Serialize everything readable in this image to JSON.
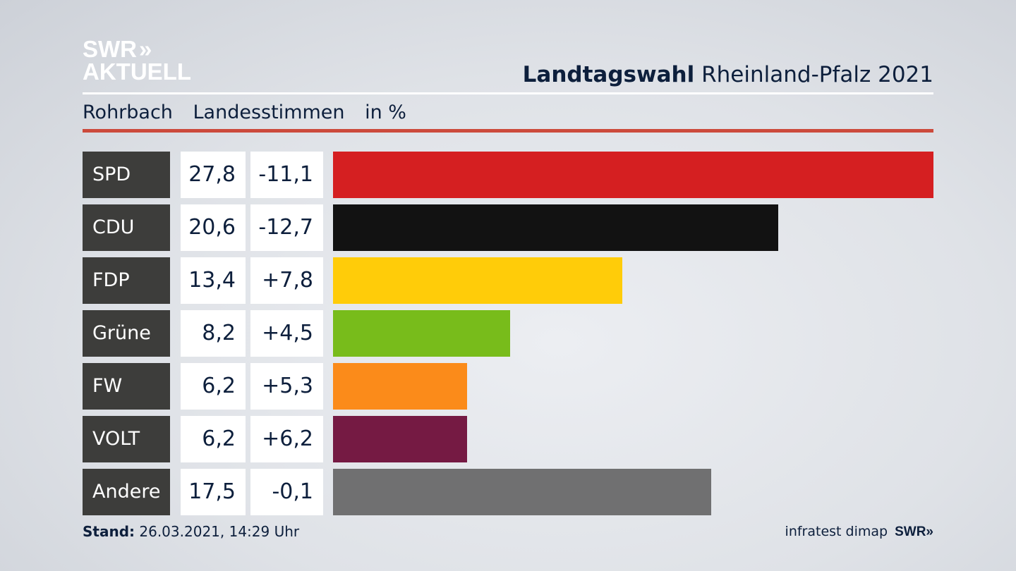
{
  "logo": {
    "line1": "SWR",
    "arrows": "»",
    "line2": "AKTUELL"
  },
  "header": {
    "title_bold": "Landtagswahl",
    "title_rest": "Rheinland-Pfalz 2021"
  },
  "subheader": {
    "place": "Rohrbach",
    "vote_type": "Landesstimmen",
    "unit": "in %"
  },
  "footer": {
    "stand_label": "Stand:",
    "stand_value": "26.03.2021, 14:29 Uhr",
    "source": "infratest dimap",
    "brand": "SWR»"
  },
  "chart_data": {
    "type": "bar",
    "orientation": "horizontal",
    "title": "Landtagswahl Rheinland-Pfalz 2021",
    "subtitle": "Rohrbach Landesstimmen in %",
    "xmax": 27.8,
    "categories": [
      "SPD",
      "CDU",
      "FDP",
      "Grüne",
      "FW",
      "VOLT",
      "Andere"
    ],
    "values": [
      27.8,
      20.6,
      13.4,
      8.2,
      6.2,
      6.2,
      17.5
    ],
    "value_labels": [
      "27,8",
      "20,6",
      "13,4",
      "8,2",
      "6,2",
      "6,2",
      "17,5"
    ],
    "change_labels": [
      "-11,1",
      "-12,7",
      "+7,8",
      "+4,5",
      "+5,3",
      "+6,2",
      "-0,1"
    ],
    "colors": [
      "#d51f21",
      "#121212",
      "#ffcc09",
      "#78bc1b",
      "#fb8b1a",
      "#751a43",
      "#707071"
    ]
  }
}
